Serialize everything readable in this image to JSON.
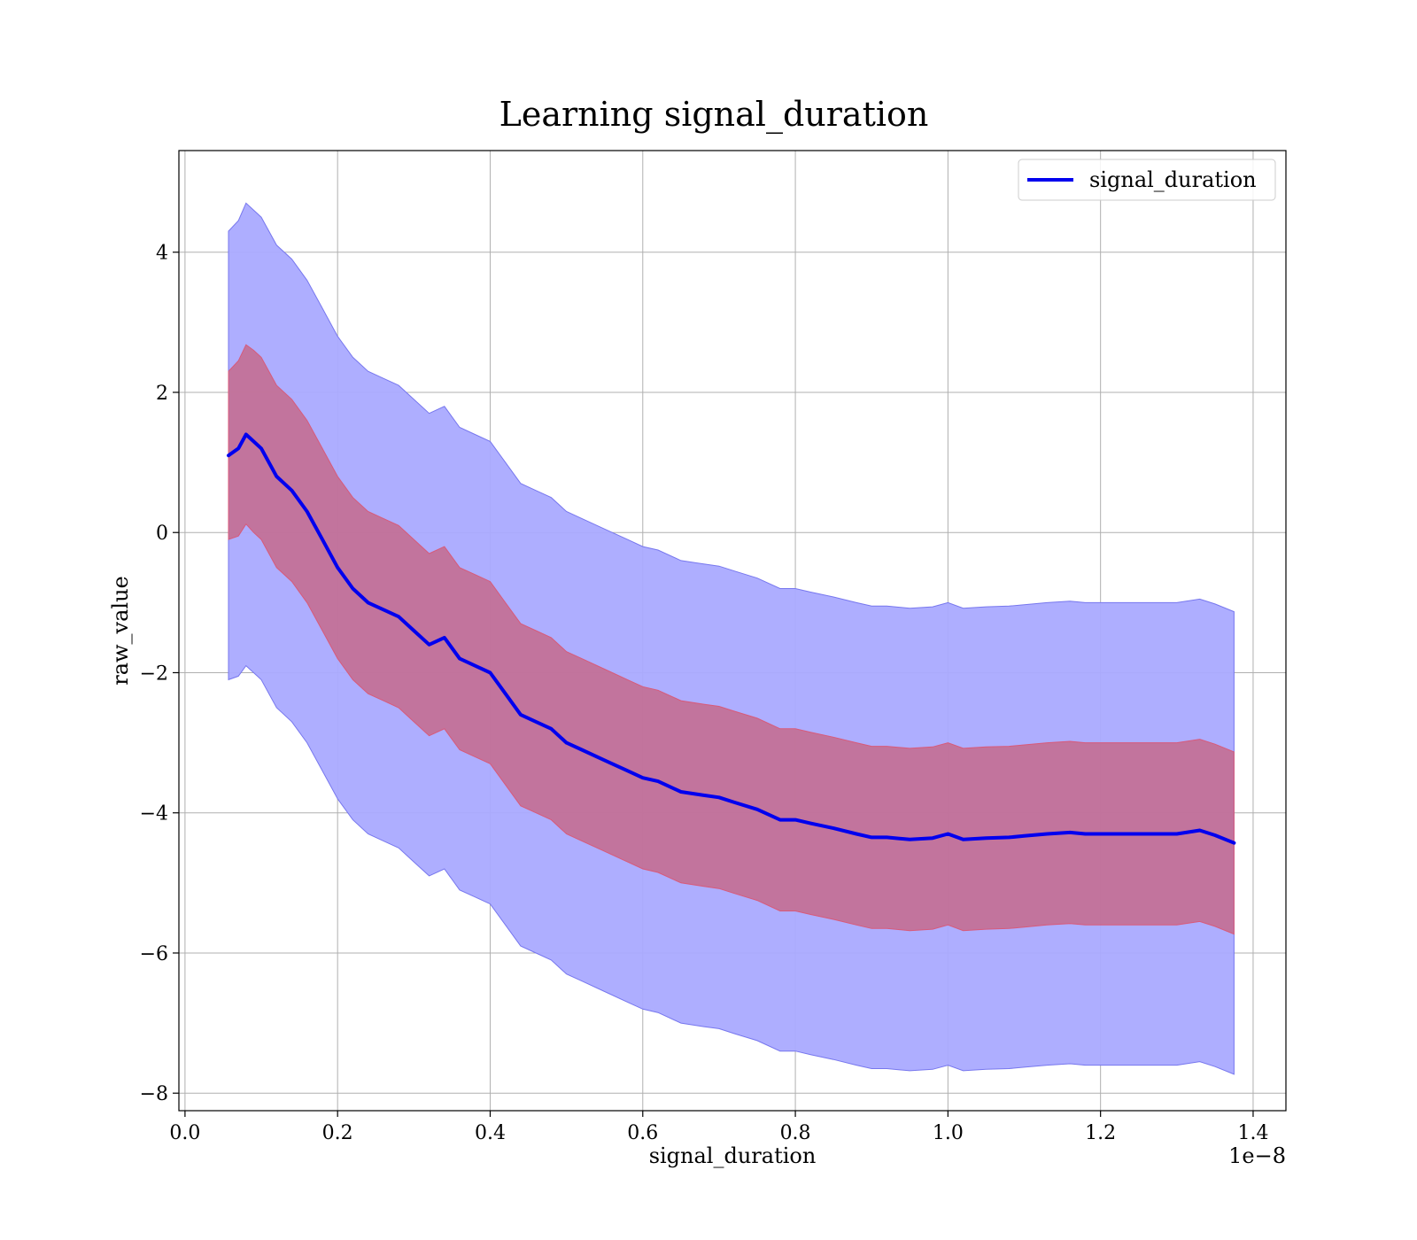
{
  "chart_data": {
    "type": "line",
    "title": "Learning signal_duration",
    "xlabel": "signal_duration",
    "ylabel": "raw_value",
    "x_offset_label": "1e−8",
    "xlim": [
      -0.008,
      1.443
    ],
    "ylim": [
      -8.25,
      5.45
    ],
    "x_ticks": [
      0.0,
      0.2,
      0.4,
      0.6,
      0.8,
      1.0,
      1.2,
      1.4
    ],
    "x_tick_labels": [
      "0.0",
      "0.2",
      "0.4",
      "0.6",
      "0.8",
      "1.0",
      "1.2",
      "1.4"
    ],
    "y_ticks": [
      4,
      2,
      0,
      -2,
      -4,
      -6,
      -8
    ],
    "y_tick_labels": [
      "4",
      "2",
      "0",
      "−2",
      "−4",
      "−6",
      "−8"
    ],
    "grid": true,
    "legend_position": "top-right",
    "colors": {
      "line": "#0000ee",
      "outer_band": "#aaaaff",
      "inner_band": "#c8607c"
    },
    "series": [
      {
        "name": "signal_duration",
        "x": [
          0.057,
          0.07,
          0.08,
          0.09,
          0.1,
          0.12,
          0.14,
          0.16,
          0.18,
          0.2,
          0.22,
          0.24,
          0.26,
          0.28,
          0.3,
          0.32,
          0.34,
          0.36,
          0.38,
          0.4,
          0.42,
          0.44,
          0.46,
          0.48,
          0.5,
          0.52,
          0.55,
          0.58,
          0.6,
          0.62,
          0.65,
          0.68,
          0.7,
          0.72,
          0.75,
          0.78,
          0.8,
          0.82,
          0.85,
          0.88,
          0.9,
          0.92,
          0.95,
          0.98,
          1.0,
          1.02,
          1.05,
          1.08,
          1.1,
          1.13,
          1.16,
          1.18,
          1.2,
          1.23,
          1.26,
          1.28,
          1.3,
          1.33,
          1.35,
          1.375
        ],
        "values": [
          1.1,
          1.2,
          1.4,
          1.3,
          1.2,
          0.8,
          0.6,
          0.3,
          -0.1,
          -0.5,
          -0.8,
          -1.0,
          -1.1,
          -1.2,
          -1.4,
          -1.6,
          -1.5,
          -1.8,
          -1.9,
          -2.0,
          -2.3,
          -2.6,
          -2.7,
          -2.8,
          -3.0,
          -3.1,
          -3.25,
          -3.4,
          -3.5,
          -3.55,
          -3.7,
          -3.75,
          -3.78,
          -3.85,
          -3.95,
          -4.1,
          -4.1,
          -4.15,
          -4.22,
          -4.3,
          -4.35,
          -4.35,
          -4.38,
          -4.36,
          -4.3,
          -4.38,
          -4.36,
          -4.35,
          -4.33,
          -4.3,
          -4.28,
          -4.3,
          -4.3,
          -4.3,
          -4.3,
          -4.3,
          -4.3,
          -4.25,
          -4.32,
          -4.43
        ],
        "band_1sigma": [
          1.2,
          1.25,
          1.28,
          1.3,
          1.3,
          1.3,
          1.3,
          1.3,
          1.3,
          1.3,
          1.3,
          1.3,
          1.3,
          1.3,
          1.3,
          1.3,
          1.3,
          1.3,
          1.3,
          1.3,
          1.3,
          1.3,
          1.3,
          1.3,
          1.3,
          1.3,
          1.3,
          1.3,
          1.3,
          1.3,
          1.3,
          1.3,
          1.3,
          1.3,
          1.3,
          1.3,
          1.3,
          1.3,
          1.3,
          1.3,
          1.3,
          1.3,
          1.3,
          1.3,
          1.3,
          1.3,
          1.3,
          1.3,
          1.3,
          1.3,
          1.3,
          1.3,
          1.3,
          1.3,
          1.3,
          1.3,
          1.3,
          1.3,
          1.3,
          1.3
        ],
        "band_2sigma": [
          3.2,
          3.25,
          3.3,
          3.3,
          3.3,
          3.3,
          3.3,
          3.3,
          3.3,
          3.3,
          3.3,
          3.3,
          3.3,
          3.3,
          3.3,
          3.3,
          3.3,
          3.3,
          3.3,
          3.3,
          3.3,
          3.3,
          3.3,
          3.3,
          3.3,
          3.3,
          3.3,
          3.3,
          3.3,
          3.3,
          3.3,
          3.3,
          3.3,
          3.3,
          3.3,
          3.3,
          3.3,
          3.3,
          3.3,
          3.3,
          3.3,
          3.3,
          3.3,
          3.3,
          3.3,
          3.3,
          3.3,
          3.3,
          3.3,
          3.3,
          3.3,
          3.3,
          3.3,
          3.3,
          3.3,
          3.3,
          3.3,
          3.3,
          3.3,
          3.3
        ]
      }
    ]
  }
}
